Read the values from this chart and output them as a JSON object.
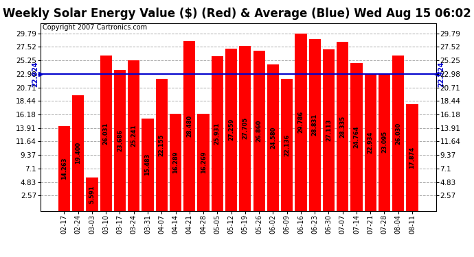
{
  "title": "Weekly Solar Energy Value ($) (Red) & Average (Blue) Wed Aug 15 06:02",
  "copyright": "Copyright 2007 Cartronics.com",
  "categories": [
    "02-17",
    "02-24",
    "03-03",
    "03-10",
    "03-17",
    "03-24",
    "03-31",
    "04-07",
    "04-14",
    "04-21",
    "04-28",
    "05-05",
    "05-12",
    "05-19",
    "05-26",
    "06-02",
    "06-09",
    "06-16",
    "06-23",
    "06-30",
    "07-07",
    "07-14",
    "07-21",
    "07-28",
    "08-04",
    "08-11"
  ],
  "values": [
    14.263,
    19.4,
    5.591,
    26.031,
    23.686,
    25.241,
    15.483,
    22.155,
    16.289,
    28.48,
    16.269,
    25.931,
    27.259,
    27.705,
    26.86,
    24.58,
    22.136,
    29.786,
    28.831,
    27.113,
    28.335,
    24.764,
    22.934,
    23.095,
    26.03,
    17.874
  ],
  "average": 22.924,
  "bar_color": "#ff0000",
  "avg_line_color": "#0000cc",
  "background_color": "#ffffff",
  "plot_bg_color": "#ffffff",
  "grid_color": "#aaaaaa",
  "yticks": [
    2.57,
    4.83,
    7.1,
    9.37,
    11.64,
    13.91,
    16.18,
    18.44,
    20.71,
    22.98,
    25.25,
    27.52,
    29.79
  ],
  "ylim": [
    0.0,
    31.5
  ],
  "title_fontsize": 12,
  "copyright_fontsize": 7,
  "bar_label_fontsize": 6.0,
  "tick_fontsize": 7.5,
  "avg_fontsize": 7.0,
  "avg_value_str": "22.924"
}
